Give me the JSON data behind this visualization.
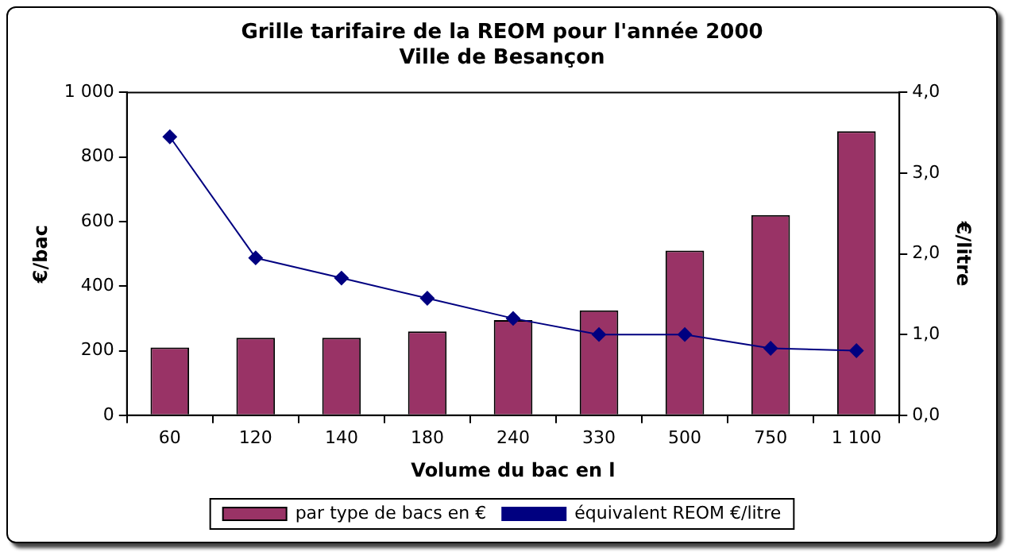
{
  "chart_data": {
    "type": "bar",
    "title": "Grille tarifaire de la REOM pour l'année 2000\nVille de Besançon",
    "xlabel": "Volume du bac en l",
    "ylabel": "€/bac",
    "y2label": "€/litre",
    "categories": [
      "60",
      "120",
      "140",
      "180",
      "240",
      "330",
      "500",
      "750",
      "1 100"
    ],
    "series": [
      {
        "name": "par type de bacs en €",
        "color": "#993366",
        "values": [
          210,
          240,
          240,
          260,
          295,
          325,
          510,
          620,
          880
        ]
      },
      {
        "name": "équivalent REOM €/litre",
        "type": "line",
        "axis": "y2",
        "color": "#000080",
        "marker": "diamond",
        "values": [
          3.45,
          1.95,
          1.7,
          1.45,
          1.2,
          1.0,
          1.0,
          0.83,
          0.8
        ]
      }
    ],
    "ylim": [
      0,
      1000
    ],
    "yticks": [
      0,
      200,
      400,
      600,
      800,
      {
        "value": 1000,
        "label": "1 000"
      }
    ],
    "y2lim": [
      0,
      4
    ],
    "y2ticks": [
      {
        "value": 0,
        "label": "0,0"
      },
      {
        "value": 1,
        "label": "1,0"
      },
      {
        "value": 2,
        "label": "2,0"
      },
      {
        "value": 3,
        "label": "3,0"
      },
      {
        "value": 4,
        "label": "4,0"
      }
    ],
    "grid": false,
    "legend": "bottom"
  }
}
